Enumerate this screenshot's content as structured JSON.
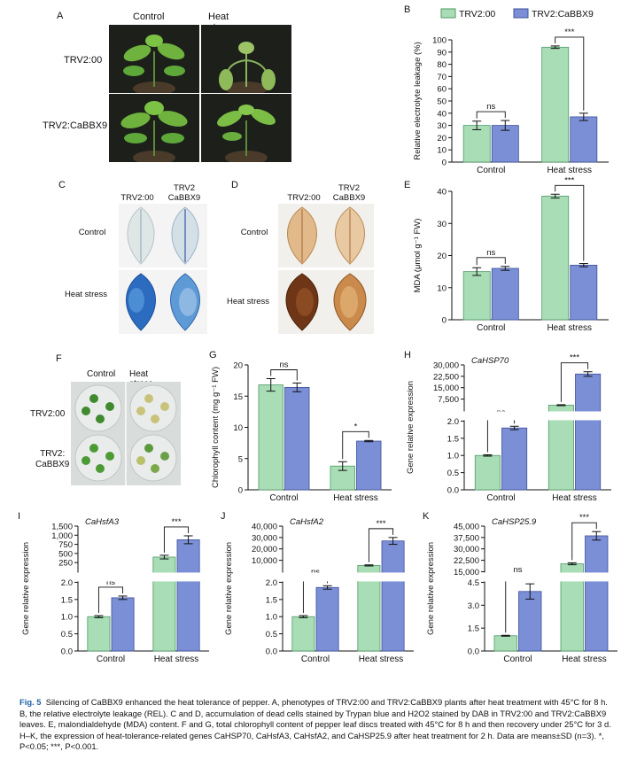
{
  "colors": {
    "trv200": "#a8ddb5",
    "trv200_edge": "#4f9a6a",
    "cabbx9": "#7b8fd6",
    "cabbx9_edge": "#3e4f9a"
  },
  "panel_A": {
    "label": "A",
    "col_headers": [
      "Control",
      "Heat stress"
    ],
    "row_labels": [
      "TRV2:00",
      "TRV2:CaBBX9"
    ]
  },
  "panel_C": {
    "label": "C",
    "col_headers": [
      "TRV2:00",
      "TRV2\nCaBBX9"
    ],
    "row_labels": [
      "Control",
      "Heat stress"
    ]
  },
  "panel_D": {
    "label": "D",
    "col_headers": [
      "TRV2:00",
      "TRV2\nCaBBX9"
    ],
    "row_labels": [
      "Control",
      "Heat stress"
    ]
  },
  "panel_F": {
    "label": "F",
    "col_headers": [
      "Control",
      "Heat stress"
    ],
    "row_labels": [
      "TRV2:00",
      "TRV2:\nCaBBX9"
    ]
  },
  "legend": [
    "TRV2:00",
    "TRV2:CaBBX9"
  ],
  "chart_data": [
    {
      "id": "B",
      "label": "B",
      "type": "bar",
      "categories": [
        "Control",
        "Heat stress"
      ],
      "series": [
        {
          "name": "TRV2:00",
          "values": [
            30,
            94
          ],
          "errors": [
            3.5,
            1
          ]
        },
        {
          "name": "TRV2:CaBBX9",
          "values": [
            30,
            37
          ],
          "errors": [
            4,
            3
          ]
        }
      ],
      "ylabel": "Relative electrolyte leakage (%)",
      "ylim": [
        0,
        100
      ],
      "yticks": [
        "0",
        "10",
        "20",
        "30",
        "40",
        "50",
        "60",
        "70",
        "80",
        "90",
        "100"
      ],
      "significance": [
        "ns",
        "***"
      ]
    },
    {
      "id": "E",
      "label": "E",
      "type": "bar",
      "categories": [
        "Control",
        "Heat stress"
      ],
      "series": [
        {
          "name": "TRV2:00",
          "values": [
            15,
            38.5
          ],
          "errors": [
            1.2,
            0.6
          ]
        },
        {
          "name": "TRV2:CaBBX9",
          "values": [
            16,
            17
          ],
          "errors": [
            0.6,
            0.5
          ]
        }
      ],
      "ylabel": "MDA (μmol g⁻¹ FW)",
      "ylim": [
        0,
        40
      ],
      "yticks": [
        "0",
        "10",
        "20",
        "30",
        "40"
      ],
      "significance": [
        "ns",
        "***"
      ]
    },
    {
      "id": "G",
      "label": "G",
      "type": "bar",
      "categories": [
        "Control",
        "Heat stress"
      ],
      "series": [
        {
          "name": "TRV2:00",
          "values": [
            16.8,
            3.8
          ],
          "errors": [
            1.0,
            0.7
          ]
        },
        {
          "name": "TRV2:CaBBX9",
          "values": [
            16.4,
            7.8
          ],
          "errors": [
            0.7,
            0.1
          ]
        }
      ],
      "ylabel": "Chlorophyll content (mg g⁻¹ FW)",
      "ylim": [
        0,
        20
      ],
      "yticks": [
        "0",
        "5",
        "10",
        "15",
        "20"
      ],
      "significance": [
        "ns",
        "*"
      ]
    },
    {
      "id": "H",
      "label": "H",
      "type": "bar",
      "gene": "CaHSP70",
      "categories": [
        "Control",
        "Heat stress"
      ],
      "series": [
        {
          "name": "TRV2:00",
          "values": [
            1.0,
            3500
          ],
          "errors": [
            0.02,
            300
          ]
        },
        {
          "name": "TRV2:CaBBX9",
          "values": [
            1.8,
            24000
          ],
          "errors": [
            0.05,
            1500
          ]
        }
      ],
      "ylabel": "Gene relative expression",
      "lower_ticks": [
        "0.0",
        "0.5",
        "1.0",
        "1.5",
        "2.0"
      ],
      "upper_ticks": [
        "7,500",
        "15,000",
        "22,500",
        "30,000"
      ],
      "significance": [
        "ns",
        "***"
      ]
    },
    {
      "id": "I",
      "label": "I",
      "type": "bar",
      "gene": "CaHsfA3",
      "categories": [
        "Control",
        "Heat stress"
      ],
      "series": [
        {
          "name": "TRV2:00",
          "values": [
            1.0,
            480
          ],
          "errors": [
            0.03,
            60
          ]
        },
        {
          "name": "TRV2:CaBBX9",
          "values": [
            1.55,
            1050
          ],
          "errors": [
            0.05,
            130
          ]
        }
      ],
      "ylabel": "Gene relative expression",
      "lower_ticks": [
        "0.0",
        "0.5",
        "1.0",
        "1.5",
        "2.0"
      ],
      "upper_ticks": [
        "250",
        "500",
        "750",
        "1,000",
        "1,500"
      ],
      "significance": [
        "ns",
        "***"
      ]
    },
    {
      "id": "J",
      "label": "J",
      "type": "bar",
      "gene": "CaHsfA2",
      "categories": [
        "Control",
        "Heat stress"
      ],
      "series": [
        {
          "name": "TRV2:00",
          "values": [
            1.0,
            5500
          ],
          "errors": [
            0.03,
            500
          ]
        },
        {
          "name": "TRV2:CaBBX9",
          "values": [
            1.85,
            27000
          ],
          "errors": [
            0.05,
            3000
          ]
        }
      ],
      "ylabel": "Gene relative expression",
      "lower_ticks": [
        "0.0",
        "0.5",
        "1.0",
        "1.5",
        "2.0"
      ],
      "upper_ticks": [
        "10,000",
        "20,000",
        "30,000",
        "40,000"
      ],
      "significance": [
        "ns",
        "***"
      ]
    },
    {
      "id": "K",
      "label": "K",
      "type": "bar",
      "gene": "CaHSP25.9",
      "categories": [
        "Control",
        "Heat stress"
      ],
      "series": [
        {
          "name": "TRV2:00",
          "values": [
            1.0,
            14000
          ],
          "errors": [
            0.03,
            800
          ]
        },
        {
          "name": "TRV2:CaBBX9",
          "values": [
            3.9,
            37000
          ],
          "errors": [
            0.5,
            3500
          ]
        }
      ],
      "ylabel": "Gene relative expression",
      "lower_ticks": [
        "0.0",
        "1.5",
        "3.0",
        "4.5"
      ],
      "upper_ticks": [
        "15,000",
        "22,500",
        "30,000",
        "37,500",
        "45,000"
      ],
      "significance": [
        "ns",
        "***"
      ]
    }
  ],
  "caption": {
    "title": "Fig. 5",
    "text": "Silencing of CaBBX9 enhanced the heat tolerance of pepper. A, phenotypes of TRV2:00 and TRV2:CaBBX9 plants after heat treatment with 45°C for 8 h. B, the relative electrolyte leakage (REL). C and D, accumulation of dead cells stained by Trypan blue and H2O2 stained by DAB in TRV2:00 and TRV2:CaBBX9 leaves. E, malondialdehyde (MDA) content. F and G, total chlorophyll content of pepper leaf discs treated with 45°C for 8 h and then recovery under 25°C for 3 d. H–K, the expression of heat-tolerance-related genes CaHSP70, CaHsfA3, CaHsfA2, and CaHSP25.9 after heat treatment for 2 h. Data are means±SD (n=3). *, P<0.05; ***, P<0.001."
  }
}
